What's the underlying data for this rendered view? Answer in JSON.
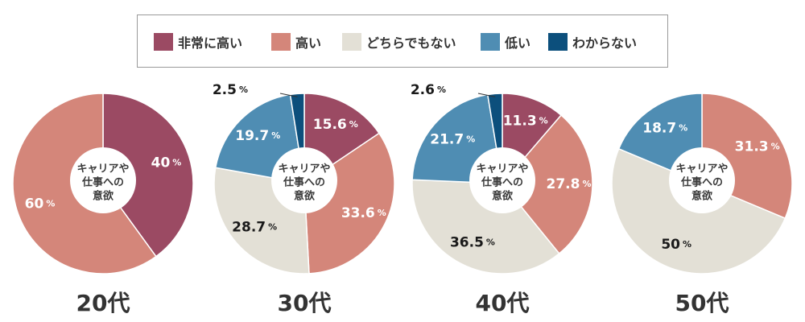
{
  "legend": {
    "items": [
      {
        "label": "非常に高い",
        "color": "#9b4a63"
      },
      {
        "label": "高い",
        "color": "#d4867a"
      },
      {
        "label": "どちらでもない",
        "color": "#e3e0d6"
      },
      {
        "label": "低い",
        "color": "#4f8db3"
      },
      {
        "label": "わからない",
        "color": "#0c4f7c"
      }
    ]
  },
  "chart_data": [
    {
      "type": "pie",
      "title": "20代",
      "center_label": [
        "キャリアや",
        "仕事への",
        "意欲"
      ],
      "categories": [
        "非常に高い",
        "高い",
        "どちらでもない",
        "低い",
        "わからない"
      ],
      "values": [
        40,
        60,
        0,
        0,
        0
      ],
      "value_labels": [
        "40",
        "60",
        "",
        "",
        ""
      ],
      "unit": "%"
    },
    {
      "type": "pie",
      "title": "30代",
      "center_label": [
        "キャリアや",
        "仕事への",
        "意欲"
      ],
      "categories": [
        "非常に高い",
        "高い",
        "どちらでもない",
        "低い",
        "わからない"
      ],
      "values": [
        15.6,
        33.6,
        28.7,
        19.7,
        2.5
      ],
      "value_labels": [
        "15.6",
        "33.6",
        "28.7",
        "19.7",
        "2.5"
      ],
      "unit": "%"
    },
    {
      "type": "pie",
      "title": "40代",
      "center_label": [
        "キャリアや",
        "仕事への",
        "意欲"
      ],
      "categories": [
        "非常に高い",
        "高い",
        "どちらでもない",
        "低い",
        "わからない"
      ],
      "values": [
        11.3,
        27.8,
        36.5,
        21.7,
        2.6
      ],
      "value_labels": [
        "11.3",
        "27.8",
        "36.5",
        "21.7",
        "2.6"
      ],
      "unit": "%"
    },
    {
      "type": "pie",
      "title": "50代",
      "center_label": [
        "キャリアや",
        "仕事への",
        "意欲"
      ],
      "categories": [
        "非常に高い",
        "高い",
        "どちらでもない",
        "低い",
        "わからない"
      ],
      "values": [
        0,
        31.3,
        50,
        18.7,
        0
      ],
      "value_labels": [
        "",
        "31.3",
        "50",
        "18.7",
        ""
      ],
      "unit": "%"
    }
  ]
}
